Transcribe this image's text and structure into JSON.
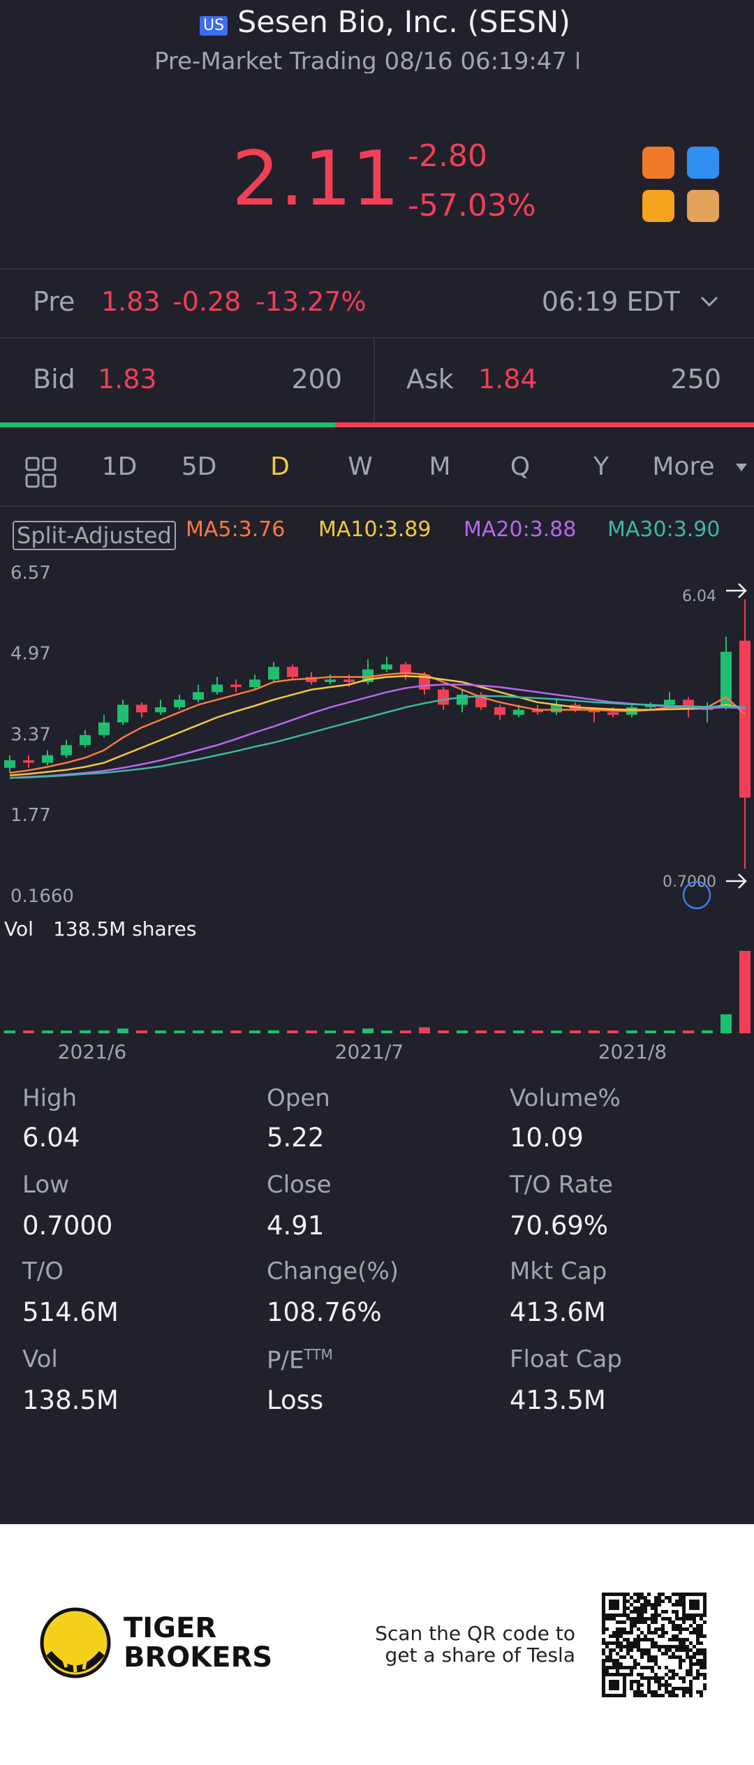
{
  "header": {
    "badge": "US",
    "title": "Sesen Bio, Inc. (SESN)",
    "subtitle": "Pre-Market Trading 08/16 06:19:47 EDT"
  },
  "quote": {
    "price": "2.11",
    "change": "-2.80",
    "change_pct": "-57.03%"
  },
  "premarket": {
    "label": "Pre",
    "price": "1.83",
    "change": "-0.28",
    "change_pct": "-13.27%",
    "time": "06:19 EDT"
  },
  "book": {
    "bid_label": "Bid",
    "bid": "1.83",
    "bid_size": 200,
    "ask_label": "Ask",
    "ask": "1.84",
    "ask_size": 250
  },
  "tabs": [
    "1D",
    "5D",
    "D",
    "W",
    "M",
    "Q",
    "Y",
    "More"
  ],
  "active_tab": 2,
  "chart": {
    "adjust_label": "Split-Adjusted",
    "yticks": [
      {
        "value": 6.57,
        "label": "6.57"
      },
      {
        "value": 4.97,
        "label": "4.97"
      },
      {
        "value": 3.37,
        "label": "3.37"
      },
      {
        "value": 1.77,
        "label": "1.77"
      },
      {
        "value": 0.166,
        "label": "0.1660"
      }
    ],
    "ylim": [
      0.166,
      6.57
    ],
    "up_color": "#1fbf70",
    "down_color": "#f23f56",
    "high_label": "6.04",
    "low_label": "0.7000",
    "candles": [
      {
        "o": 2.7,
        "c": 2.85,
        "h": 2.95,
        "l": 2.6
      },
      {
        "o": 2.85,
        "c": 2.8,
        "h": 2.95,
        "l": 2.7
      },
      {
        "o": 2.8,
        "c": 2.95,
        "h": 3.05,
        "l": 2.75
      },
      {
        "o": 2.95,
        "c": 3.15,
        "h": 3.25,
        "l": 2.9
      },
      {
        "o": 3.15,
        "c": 3.35,
        "h": 3.45,
        "l": 3.1
      },
      {
        "o": 3.35,
        "c": 3.6,
        "h": 3.75,
        "l": 3.3
      },
      {
        "o": 3.6,
        "c": 3.95,
        "h": 4.05,
        "l": 3.55
      },
      {
        "o": 3.95,
        "c": 3.8,
        "h": 4.0,
        "l": 3.7
      },
      {
        "o": 3.8,
        "c": 3.9,
        "h": 4.05,
        "l": 3.75
      },
      {
        "o": 3.9,
        "c": 4.05,
        "h": 4.15,
        "l": 3.85
      },
      {
        "o": 4.05,
        "c": 4.2,
        "h": 4.35,
        "l": 4.0
      },
      {
        "o": 4.2,
        "c": 4.35,
        "h": 4.5,
        "l": 4.15
      },
      {
        "o": 4.35,
        "c": 4.3,
        "h": 4.45,
        "l": 4.2
      },
      {
        "o": 4.3,
        "c": 4.45,
        "h": 4.55,
        "l": 4.25
      },
      {
        "o": 4.45,
        "c": 4.7,
        "h": 4.8,
        "l": 4.4
      },
      {
        "o": 4.7,
        "c": 4.5,
        "h": 4.75,
        "l": 4.45
      },
      {
        "o": 4.5,
        "c": 4.4,
        "h": 4.6,
        "l": 4.35
      },
      {
        "o": 4.4,
        "c": 4.45,
        "h": 4.55,
        "l": 4.35
      },
      {
        "o": 4.45,
        "c": 4.4,
        "h": 4.55,
        "l": 4.3
      },
      {
        "o": 4.4,
        "c": 4.65,
        "h": 4.85,
        "l": 4.35
      },
      {
        "o": 4.65,
        "c": 4.75,
        "h": 4.9,
        "l": 4.6
      },
      {
        "o": 4.75,
        "c": 4.55,
        "h": 4.8,
        "l": 4.45
      },
      {
        "o": 4.55,
        "c": 4.25,
        "h": 4.6,
        "l": 4.15
      },
      {
        "o": 4.25,
        "c": 3.95,
        "h": 4.3,
        "l": 3.85
      },
      {
        "o": 3.95,
        "c": 4.15,
        "h": 4.25,
        "l": 3.8
      },
      {
        "o": 4.15,
        "c": 3.9,
        "h": 4.2,
        "l": 3.85
      },
      {
        "o": 3.9,
        "c": 3.75,
        "h": 3.95,
        "l": 3.65
      },
      {
        "o": 3.75,
        "c": 3.85,
        "h": 3.95,
        "l": 3.7
      },
      {
        "o": 3.85,
        "c": 3.8,
        "h": 3.95,
        "l": 3.75
      },
      {
        "o": 3.8,
        "c": 3.95,
        "h": 4.05,
        "l": 3.75
      },
      {
        "o": 3.95,
        "c": 3.85,
        "h": 4.0,
        "l": 3.8
      },
      {
        "o": 3.85,
        "c": 3.8,
        "h": 3.9,
        "l": 3.6
      },
      {
        "o": 3.8,
        "c": 3.75,
        "h": 3.9,
        "l": 3.7
      },
      {
        "o": 3.75,
        "c": 3.9,
        "h": 3.95,
        "l": 3.7
      },
      {
        "o": 3.9,
        "c": 3.95,
        "h": 4.0,
        "l": 3.85
      },
      {
        "o": 3.95,
        "c": 4.05,
        "h": 4.2,
        "l": 3.9
      },
      {
        "o": 4.05,
        "c": 3.85,
        "h": 4.1,
        "l": 3.7
      },
      {
        "o": 3.85,
        "c": 3.9,
        "h": 4.0,
        "l": 3.6
      },
      {
        "o": 3.9,
        "c": 5.0,
        "h": 5.3,
        "l": 3.85
      },
      {
        "o": 5.22,
        "c": 2.11,
        "h": 6.04,
        "l": 0.7
      }
    ],
    "ma": [
      {
        "label": "MA5:3.76",
        "color": "#ff7a3d",
        "values": [
          2.6,
          2.65,
          2.72,
          2.8,
          2.9,
          3.05,
          3.3,
          3.5,
          3.65,
          3.8,
          3.95,
          4.05,
          4.15,
          4.25,
          4.4,
          4.45,
          4.47,
          4.5,
          4.5,
          4.5,
          4.55,
          4.58,
          4.55,
          4.4,
          4.25,
          4.1,
          4.0,
          3.92,
          3.85,
          3.85,
          3.85,
          3.85,
          3.83,
          3.82,
          3.85,
          3.9,
          3.9,
          3.9,
          4.1,
          3.76
        ]
      },
      {
        "label": "MA10:3.89",
        "color": "#f5c93e",
        "values": [
          2.55,
          2.58,
          2.62,
          2.66,
          2.72,
          2.8,
          2.95,
          3.1,
          3.25,
          3.4,
          3.55,
          3.7,
          3.82,
          3.93,
          4.05,
          4.15,
          4.25,
          4.3,
          4.35,
          4.45,
          4.5,
          4.52,
          4.5,
          4.45,
          4.4,
          4.3,
          4.2,
          4.1,
          4.0,
          3.95,
          3.9,
          3.88,
          3.86,
          3.85,
          3.85,
          3.86,
          3.87,
          3.88,
          3.95,
          3.89
        ]
      },
      {
        "label": "MA20:3.88",
        "color": "#b868f0",
        "values": [
          2.5,
          2.52,
          2.54,
          2.57,
          2.6,
          2.64,
          2.7,
          2.77,
          2.85,
          2.95,
          3.05,
          3.15,
          3.27,
          3.4,
          3.52,
          3.65,
          3.78,
          3.9,
          4.0,
          4.1,
          4.2,
          4.28,
          4.33,
          4.35,
          4.35,
          4.33,
          4.3,
          4.25,
          4.2,
          4.15,
          4.1,
          4.05,
          4.0,
          3.97,
          3.94,
          3.92,
          3.9,
          3.88,
          3.9,
          3.88
        ]
      },
      {
        "label": "MA30:3.90",
        "color": "#3cb8a7",
        "values": [
          2.5,
          2.51,
          2.53,
          2.55,
          2.58,
          2.6,
          2.64,
          2.68,
          2.73,
          2.8,
          2.87,
          2.95,
          3.03,
          3.12,
          3.2,
          3.3,
          3.4,
          3.5,
          3.6,
          3.7,
          3.8,
          3.9,
          3.98,
          4.05,
          4.1,
          4.12,
          4.12,
          4.1,
          4.08,
          4.06,
          4.03,
          4.0,
          3.98,
          3.96,
          3.95,
          3.93,
          3.92,
          3.91,
          3.92,
          3.9
        ]
      }
    ],
    "vol_label": "Vol",
    "vol_text": "138.5M shares",
    "volume": [
      3,
      4,
      2,
      3,
      5,
      4,
      8,
      4,
      3,
      4,
      3,
      4,
      3,
      3,
      5,
      4,
      3,
      3,
      3,
      8,
      4,
      3,
      10,
      4,
      3,
      3,
      3,
      4,
      3,
      3,
      3,
      3,
      3,
      3,
      3,
      4,
      4,
      5,
      32,
      138.5
    ],
    "dates": [
      "2021/6",
      "2021/7",
      "2021/8"
    ]
  },
  "stats": [
    {
      "label": "High",
      "value": "6.04"
    },
    {
      "label": "Open",
      "value": "5.22"
    },
    {
      "label": "Volume%",
      "value": "10.09"
    },
    {
      "label": "Low",
      "value": "0.7000"
    },
    {
      "label": "Close",
      "value": "4.91"
    },
    {
      "label": "T/O Rate",
      "value": "70.69%"
    },
    {
      "label": "T/O",
      "value": "514.6M"
    },
    {
      "label": "Change(%)",
      "value": "108.76%"
    },
    {
      "label": "Mkt Cap",
      "value": "413.6M"
    },
    {
      "label": "Vol",
      "value": "138.5M"
    },
    {
      "label": "P/E",
      "sup": "TTM",
      "value": "Loss"
    },
    {
      "label": "Float Cap",
      "value": "413.5M"
    }
  ],
  "footer": {
    "brand_1": "TIGER",
    "brand_2": "BROKERS",
    "scan_1": "Scan the QR code to",
    "scan_2": "get a share of Tesla"
  }
}
